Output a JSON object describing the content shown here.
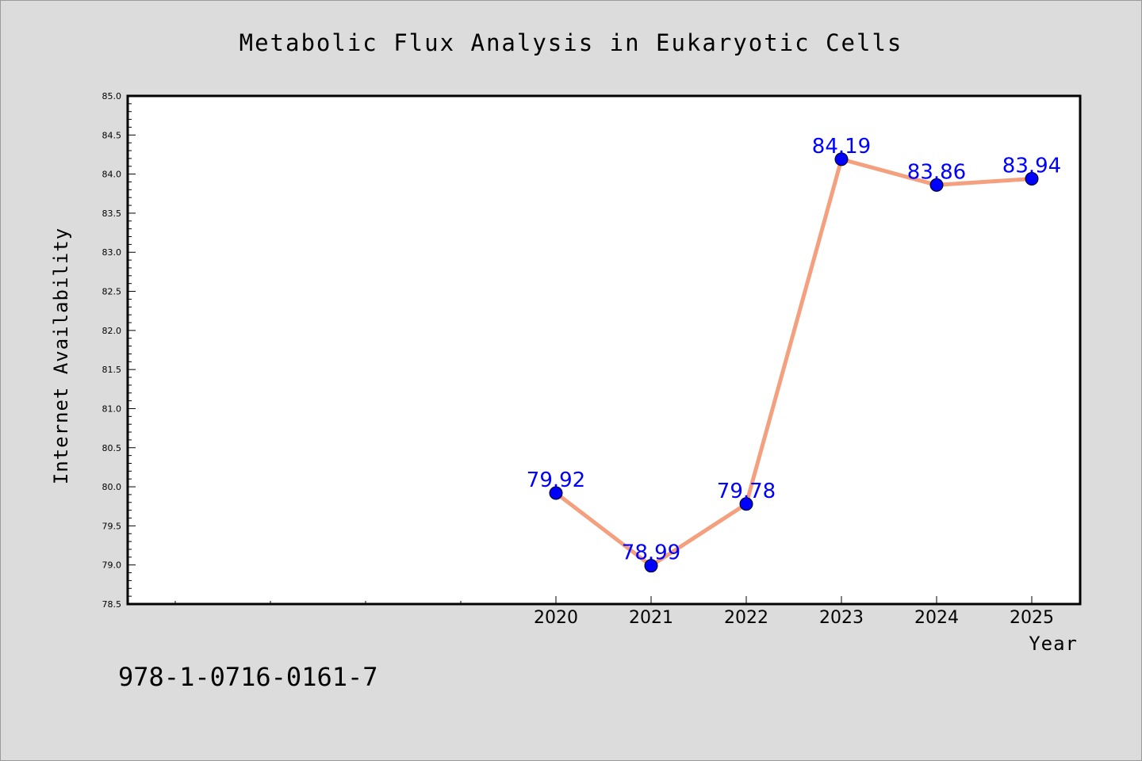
{
  "chart_data": {
    "type": "line",
    "title": "Metabolic Flux Analysis in Eukaryotic Cells",
    "xlabel": "Year",
    "ylabel": "Internet Availability",
    "x": [
      "2020",
      "2021",
      "2022",
      "2023",
      "2024",
      "2025"
    ],
    "values": [
      79.92,
      78.99,
      79.78,
      84.19,
      83.86,
      83.94
    ],
    "data_labels": [
      "79.92",
      "78.99",
      "79.78",
      "84.19",
      "83.86",
      "83.94"
    ],
    "ylim": [
      78.5,
      85.0
    ],
    "yticks": [
      "78.5",
      "79.0",
      "79.5",
      "80.0",
      "80.5",
      "81.0",
      "81.5",
      "82.0",
      "82.5",
      "83.0",
      "83.5",
      "84.0",
      "84.5",
      "85.0"
    ],
    "grid": false,
    "legend": "none",
    "colors": {
      "line": "#f4a07f",
      "marker": "#0000ff",
      "label": "#0000ff",
      "background": "#dcdcdc",
      "plot_background": "#ffffff"
    }
  },
  "footer": {
    "isbn": "978-1-0716-0161-7"
  }
}
